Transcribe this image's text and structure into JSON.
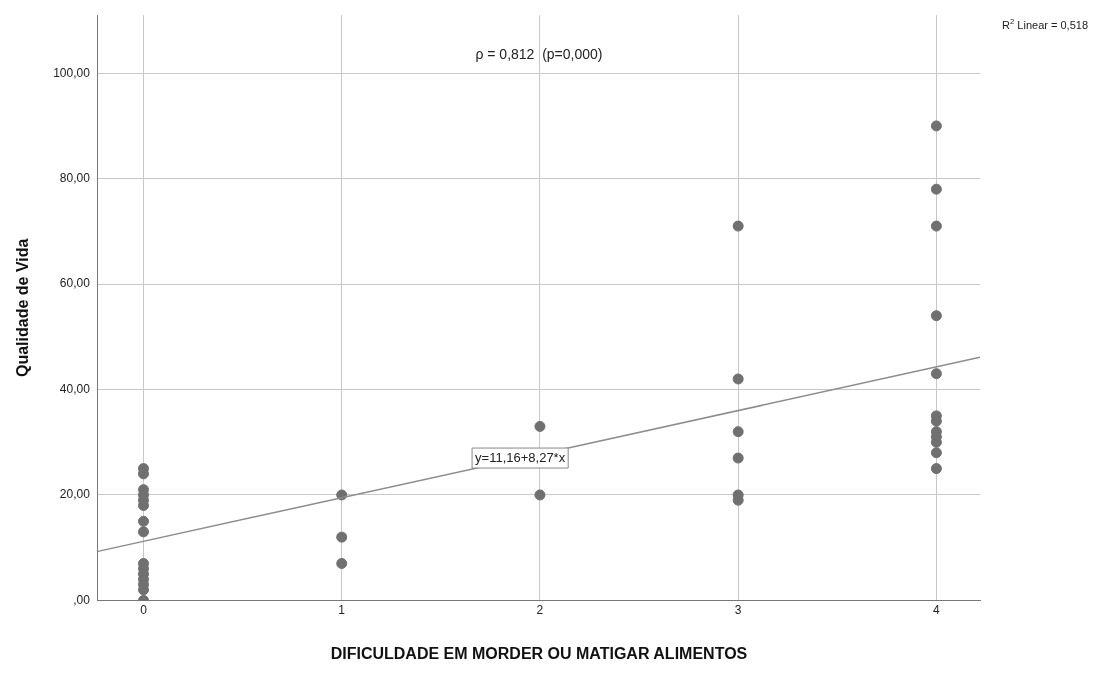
{
  "chart_data": {
    "type": "scatter",
    "xlabel": "DIFICULDADE EM MORDER OU MATIGAR ALIMENTOS",
    "ylabel": "Qualidade de Vida",
    "annotations": [
      "ρ = 0,812  (p=0,000)",
      "R$^{2}$ Linear = 0,518",
      {
        "text": "y=11,16+8,27*x",
        "x": 1.9,
        "y": 27
      }
    ],
    "series": [
      {
        "color": "#707070",
        "x": [
          0,
          0,
          0,
          0,
          0,
          0,
          0,
          0,
          0,
          0,
          0,
          0,
          0,
          0,
          0,
          1,
          1,
          1,
          2,
          2,
          3,
          3,
          3,
          3,
          3,
          3,
          4,
          4,
          4,
          4,
          4,
          4,
          4,
          4,
          4,
          4,
          4,
          4
        ],
        "values": [
          25,
          24,
          21,
          20,
          19,
          18,
          15,
          13,
          7,
          6,
          5,
          4,
          3,
          2,
          0,
          20,
          12,
          7,
          33,
          20,
          71,
          42,
          32,
          27,
          20,
          19,
          90,
          78,
          71,
          54,
          43,
          35,
          34,
          32,
          31,
          30,
          28,
          25
        ]
      },
      {
        "type": "line",
        "marker": "none",
        "color": "#8c8c8c",
        "x": [
          -0.23,
          4.22
        ],
        "values": [
          9.3,
          46.1
        ]
      }
    ],
    "xlim": [
      -0.23,
      4.22
    ],
    "ylim": [
      0,
      111
    ],
    "xticks": [
      0,
      1,
      2,
      3,
      4
    ],
    "yticks": [
      {
        "value": 0,
        "label": ",00"
      },
      {
        "value": 20,
        "label": "20,00"
      },
      {
        "value": 40,
        "label": "40,00"
      },
      {
        "value": 60,
        "label": "60,00"
      },
      {
        "value": 80,
        "label": "80,00"
      },
      {
        "value": 100,
        "label": "100,00"
      }
    ],
    "grid": true,
    "legend": false,
    "marker": "circle",
    "line_style": "solid"
  }
}
